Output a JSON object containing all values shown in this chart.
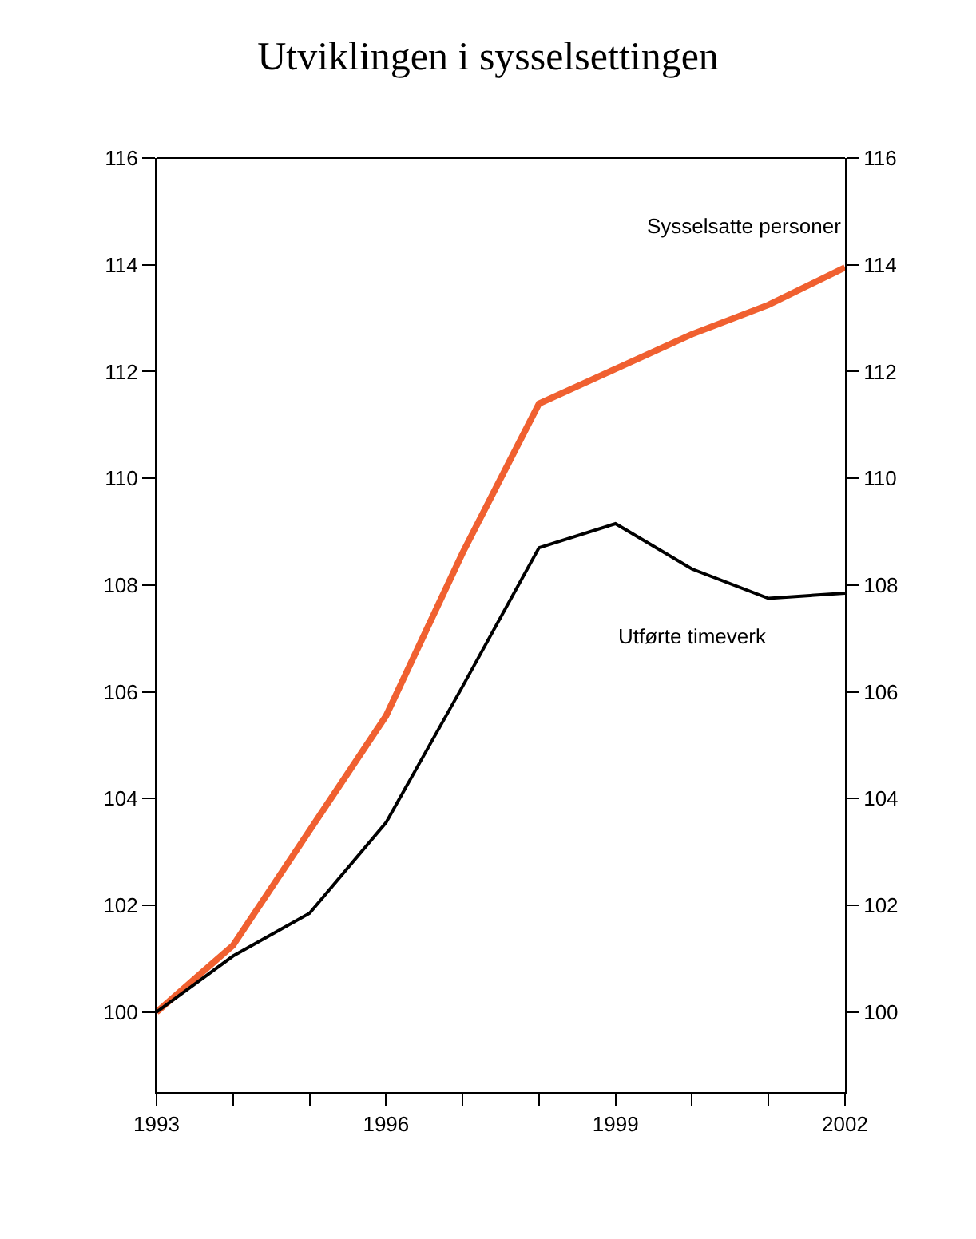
{
  "chart_data": {
    "type": "line",
    "title": "Utviklingen i sysselsettingen",
    "x": [
      1993,
      1994,
      1995,
      1996,
      1997,
      1998,
      1999,
      2000,
      2001,
      2002
    ],
    "series": [
      {
        "name": "Sysselsatte personer",
        "color": "#f06030",
        "values": [
          100,
          101.25,
          103.4,
          105.55,
          108.6,
          111.4,
          112.05,
          112.7,
          113.25,
          113.95
        ]
      },
      {
        "name": "Utførte timeverk",
        "color": "#000000",
        "values": [
          100,
          101.05,
          101.85,
          103.55,
          106.1,
          108.7,
          109.15,
          108.3,
          107.75,
          107.85
        ]
      }
    ],
    "xlim": [
      1993,
      2002
    ],
    "xticks": [
      1993,
      {
        "value": 1994,
        "label": null
      },
      {
        "value": 1995,
        "label": null
      },
      1996,
      {
        "value": 1997,
        "label": null
      },
      {
        "value": 1998,
        "label": null
      },
      1999,
      {
        "value": 2000,
        "label": null
      },
      {
        "value": 2001,
        "label": null
      },
      2002
    ],
    "ylim": [
      98.5,
      116
    ],
    "yticks": [
      100,
      102,
      104,
      106,
      108,
      110,
      112,
      114,
      116
    ],
    "y2lim": [
      98.5,
      116
    ],
    "y2ticks": [
      100,
      102,
      104,
      106,
      108,
      110,
      112,
      114,
      116
    ],
    "legend": false,
    "marker": "none",
    "line_style": "solid"
  }
}
